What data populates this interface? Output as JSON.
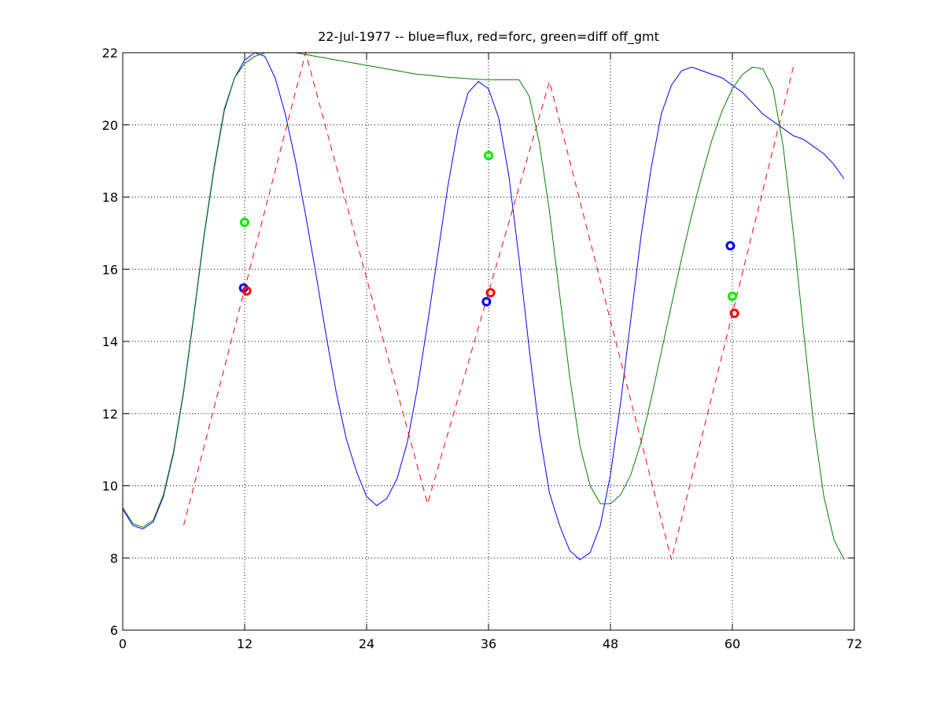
{
  "chart_data": {
    "type": "line",
    "title": "22-Jul-1977 -- blue=flux, red=forc, green=diff off_gmt",
    "xlabel": "",
    "ylabel": "",
    "xlim": [
      0,
      72
    ],
    "ylim": [
      6,
      22
    ],
    "xticks": [
      0,
      12,
      24,
      36,
      48,
      60,
      72
    ],
    "yticks": [
      6,
      8,
      10,
      12,
      14,
      16,
      18,
      20,
      22
    ],
    "xtick_labels": [
      "0",
      "12",
      "24",
      "36",
      "48",
      "60",
      "72"
    ],
    "ytick_labels": [
      "6",
      "8",
      "10",
      "12",
      "14",
      "16",
      "18",
      "20",
      "22"
    ],
    "grid": true,
    "series": [
      {
        "color": "#0000ff",
        "style": "solid",
        "x": [
          0,
          1,
          2,
          3,
          4,
          5,
          6,
          7,
          8,
          9,
          10,
          11,
          12,
          13,
          14,
          15,
          16,
          17,
          18,
          19,
          20,
          21,
          22,
          23,
          24,
          25,
          26,
          27,
          28,
          29,
          30,
          31,
          32,
          33,
          34,
          35,
          36,
          37,
          38,
          39,
          40,
          41,
          42,
          43,
          44,
          45,
          46,
          47,
          48,
          49,
          50,
          51,
          52,
          53,
          54,
          55,
          56,
          57,
          58,
          59,
          60,
          61,
          62,
          63,
          64,
          65,
          66,
          67,
          68,
          69,
          70,
          71
        ],
        "y": [
          9.35,
          8.9,
          8.8,
          9.0,
          9.7,
          10.9,
          12.6,
          14.7,
          16.9,
          18.8,
          20.4,
          21.3,
          21.8,
          22.0,
          21.9,
          21.3,
          20.3,
          19.0,
          17.5,
          15.9,
          14.2,
          12.6,
          11.3,
          10.4,
          9.7,
          9.45,
          9.65,
          10.2,
          11.2,
          12.7,
          14.5,
          16.4,
          18.3,
          19.9,
          20.9,
          21.2,
          21.0,
          20.2,
          18.6,
          16.3,
          13.8,
          11.5,
          9.8,
          8.9,
          8.2,
          7.95,
          8.15,
          8.9,
          10.3,
          12.3,
          14.6,
          16.9,
          18.8,
          20.3,
          21.1,
          21.5,
          21.6,
          21.5,
          21.4,
          21.3,
          21.1,
          20.9,
          20.6,
          20.3,
          20.1,
          19.9,
          19.7,
          19.6,
          19.4,
          19.2,
          18.9,
          18.5
        ]
      },
      {
        "color": "#ff0000",
        "style": "dashed",
        "x": [
          6,
          18,
          30,
          42,
          54,
          66
        ],
        "y": [
          8.9,
          22.0,
          9.5,
          21.2,
          7.95,
          21.6
        ]
      },
      {
        "color": "#008000",
        "style": "solid",
        "x": [
          0,
          1,
          2,
          3,
          4,
          5,
          6,
          7,
          8,
          9,
          10,
          11,
          12,
          13,
          14,
          15,
          16,
          17,
          18,
          19,
          20,
          21,
          22,
          23,
          24,
          25,
          26,
          27,
          28,
          29,
          30,
          31,
          32,
          33,
          34,
          35,
          36,
          37,
          38,
          39,
          40,
          41,
          42,
          43,
          44,
          45,
          46,
          47,
          48,
          49,
          50,
          51,
          52,
          53,
          54,
          55,
          56,
          57,
          58,
          59,
          60,
          61,
          62,
          63,
          64,
          65,
          66,
          67,
          68,
          69,
          70,
          71
        ],
        "y": [
          9.4,
          8.95,
          8.85,
          9.05,
          9.75,
          10.95,
          12.65,
          14.75,
          16.95,
          18.85,
          20.45,
          21.3,
          21.7,
          21.9,
          22.0,
          22.0,
          22.0,
          22.0,
          21.95,
          21.9,
          21.85,
          21.8,
          21.75,
          21.7,
          21.65,
          21.6,
          21.55,
          21.5,
          21.45,
          21.4,
          21.38,
          21.35,
          21.32,
          21.3,
          21.28,
          21.26,
          21.25,
          21.25,
          21.25,
          21.25,
          20.8,
          19.5,
          17.6,
          15.3,
          13.0,
          11.1,
          10.0,
          9.5,
          9.5,
          9.75,
          10.3,
          11.2,
          12.4,
          13.7,
          15.0,
          16.3,
          17.5,
          18.6,
          19.6,
          20.4,
          21.0,
          21.4,
          21.6,
          21.55,
          21.0,
          19.4,
          17.0,
          14.3,
          11.7,
          9.7,
          8.5,
          7.95
        ]
      }
    ],
    "markers": [
      {
        "color": "#0000ff",
        "x": 11.9,
        "y": 15.48
      },
      {
        "color": "#ff0000",
        "x": 12.2,
        "y": 15.4
      },
      {
        "color": "#00ee00",
        "x": 12.0,
        "y": 17.3
      },
      {
        "color": "#0000ff",
        "x": 35.8,
        "y": 15.1
      },
      {
        "color": "#ff0000",
        "x": 36.2,
        "y": 15.35
      },
      {
        "color": "#00ee00",
        "x": 36.0,
        "y": 19.15
      },
      {
        "color": "#0000ff",
        "x": 59.8,
        "y": 16.65
      },
      {
        "color": "#ff0000",
        "x": 60.2,
        "y": 14.78
      },
      {
        "color": "#00ee00",
        "x": 60.0,
        "y": 15.25
      }
    ]
  }
}
